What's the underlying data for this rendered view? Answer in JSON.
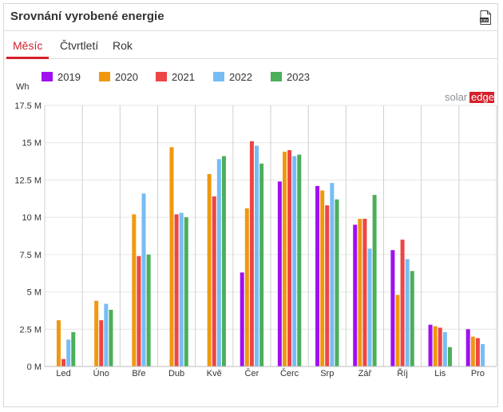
{
  "widget": {
    "title": "Srovnání vyrobené energie",
    "csv_icon": "csv-download-icon",
    "csv_label": "CSV",
    "brand": {
      "solar": "solar",
      "edge": "edge",
      "solar_color": "#8a8f94",
      "edge_color": "#d4202a"
    }
  },
  "tabs": [
    {
      "label": "Měsíc",
      "active": true
    },
    {
      "label": "Čtvrtletí",
      "active": false
    },
    {
      "label": "Rok",
      "active": false
    }
  ],
  "chart_data": {
    "type": "bar",
    "ylabel": "Wh",
    "ylim": [
      0,
      17500000
    ],
    "yticks": [
      0,
      2500000,
      5000000,
      7500000,
      10000000,
      12500000,
      15000000,
      17500000
    ],
    "ytick_labels": [
      "0 M",
      "2.5 M",
      "5 M",
      "7.5 M",
      "10 M",
      "12.5 M",
      "15 M",
      "17.5 M"
    ],
    "categories": [
      "Led",
      "Úno",
      "Bře",
      "Dub",
      "Kvě",
      "Čer",
      "Čerc",
      "Srp",
      "Zář",
      "Říj",
      "Lis",
      "Pro"
    ],
    "legend_position": "top-left",
    "grid": true,
    "series": [
      {
        "name": "2019",
        "color": "#a00ff0",
        "values": [
          0,
          0,
          0,
          0,
          0,
          6300000,
          12400000,
          12100000,
          9500000,
          7800000,
          2800000,
          2500000
        ]
      },
      {
        "name": "2020",
        "color": "#f0980e",
        "values": [
          3100000,
          4400000,
          10200000,
          14700000,
          12900000,
          10600000,
          14400000,
          11800000,
          9900000,
          4800000,
          2700000,
          2000000
        ]
      },
      {
        "name": "2021",
        "color": "#ee4545",
        "values": [
          500000,
          3100000,
          7400000,
          10200000,
          11400000,
          15100000,
          14500000,
          10800000,
          9900000,
          8500000,
          2600000,
          1900000
        ]
      },
      {
        "name": "2022",
        "color": "#76bdf5",
        "values": [
          1800000,
          4200000,
          11600000,
          10300000,
          13900000,
          14800000,
          14100000,
          12300000,
          7900000,
          7200000,
          2300000,
          1500000
        ]
      },
      {
        "name": "2023",
        "color": "#4caf5a",
        "values": [
          2300000,
          3800000,
          7500000,
          10000000,
          14100000,
          13600000,
          14200000,
          11200000,
          11500000,
          6400000,
          1300000,
          0
        ]
      }
    ]
  }
}
